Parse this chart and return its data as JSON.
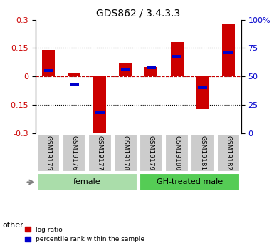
{
  "title": "GDS862 / 3.4.3.3",
  "samples": [
    "GSM19175",
    "GSM19176",
    "GSM19177",
    "GSM19178",
    "GSM19179",
    "GSM19180",
    "GSM19181",
    "GSM19182"
  ],
  "log_ratios": [
    0.14,
    0.02,
    -0.3,
    0.07,
    0.05,
    0.18,
    -0.17,
    0.28
  ],
  "percentile_ranks": [
    55,
    43,
    18,
    56,
    58,
    68,
    40,
    71
  ],
  "ylim": [
    -0.3,
    0.3
  ],
  "y2lim": [
    0,
    100
  ],
  "yticks": [
    -0.3,
    -0.15,
    0.0,
    0.15,
    0.3
  ],
  "y2ticks": [
    0,
    25,
    50,
    75,
    100
  ],
  "ytick_labels": [
    "-0.3",
    "-0.15",
    "0",
    "0.15",
    "0.3"
  ],
  "y2tick_labels": [
    "0",
    "25",
    "50",
    "75",
    "100%"
  ],
  "bar_color_red": "#cc0000",
  "bar_color_blue": "#0000cc",
  "groups": [
    {
      "label": "female",
      "start": 0,
      "end": 3,
      "color": "#aaddaa"
    },
    {
      "label": "GH-treated male",
      "start": 4,
      "end": 7,
      "color": "#55cc55"
    }
  ],
  "other_label": "other",
  "legend_items": [
    {
      "label": "log ratio",
      "color": "#cc0000"
    },
    {
      "label": "percentile rank within the sample",
      "color": "#0000cc"
    }
  ],
  "grid_color": "#000000",
  "dashed_zero_color": "#cc0000",
  "bg_plot": "#ffffff",
  "bg_xtick": "#cccccc"
}
